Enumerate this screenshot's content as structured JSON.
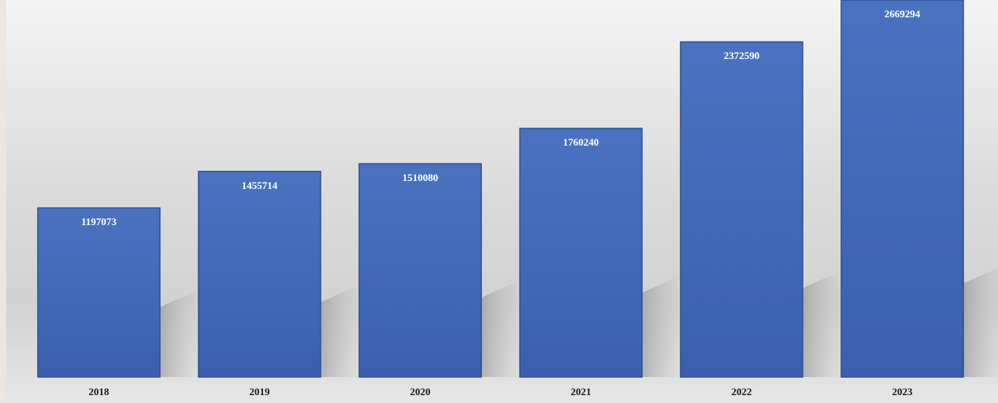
{
  "chart_data": {
    "type": "bar",
    "categories": [
      "2018",
      "2019",
      "2020",
      "2021",
      "2022",
      "2023"
    ],
    "values": [
      1197073,
      1455714,
      1510080,
      1760240,
      2372590,
      2669294
    ],
    "data_labels": [
      "1197073",
      "1455714",
      "1510080",
      "1760240",
      "2372590",
      "2669294"
    ],
    "title": "",
    "xlabel": "",
    "ylabel": "",
    "grid": false,
    "legend": "none",
    "colors": {
      "bar": "#3f67b4",
      "bar_top": "#4a72c0",
      "bar_edge": "#2e4f92",
      "label_text": "#ffffff",
      "category_text": "#1a1a1a"
    }
  }
}
